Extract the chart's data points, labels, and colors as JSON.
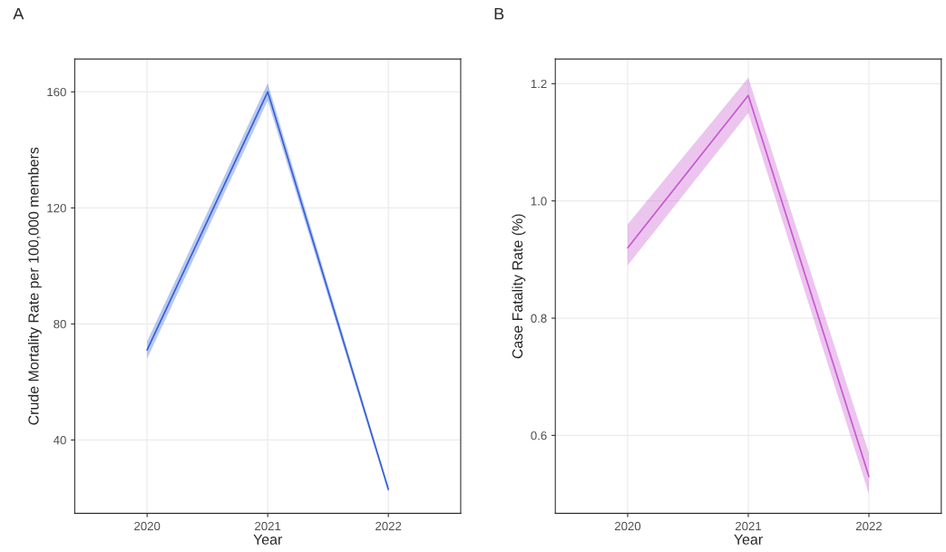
{
  "chart_data": [
    {
      "type": "line",
      "title": "A",
      "xlabel": "Year",
      "ylabel": "Crude Mortality Rate per 100,000 members",
      "x": [
        2020,
        2021,
        2022
      ],
      "xlim": [
        2019.4,
        2022.6
      ],
      "xticks": [
        2020,
        2021,
        2022
      ],
      "ylim": [
        14.7,
        171.3
      ],
      "yticks": [
        40,
        80,
        120,
        160
      ],
      "grid": true,
      "legend": false,
      "series": [
        {
          "color": "#3560d8",
          "values": [
            71,
            160,
            23
          ],
          "lower": [
            68,
            157,
            22
          ],
          "upper": [
            74,
            163,
            24
          ]
        }
      ]
    },
    {
      "type": "line",
      "title": "B",
      "xlabel": "Year",
      "ylabel": "Case Fatality Rate (%)",
      "x": [
        2020,
        2021,
        2022
      ],
      "xlim": [
        2019.4,
        2022.6
      ],
      "xticks": [
        2020,
        2021,
        2022
      ],
      "ylim": [
        0.467,
        1.242
      ],
      "yticks": [
        0.6,
        0.8,
        {
          "value": 1.0,
          "label": "1.0"
        },
        1.2
      ],
      "grid": true,
      "legend": false,
      "series": [
        {
          "color": "#c858d0",
          "values": [
            0.92,
            1.18,
            0.53
          ],
          "lower": [
            0.89,
            1.15,
            0.5
          ],
          "upper": [
            0.96,
            1.21,
            0.57
          ]
        }
      ]
    }
  ]
}
